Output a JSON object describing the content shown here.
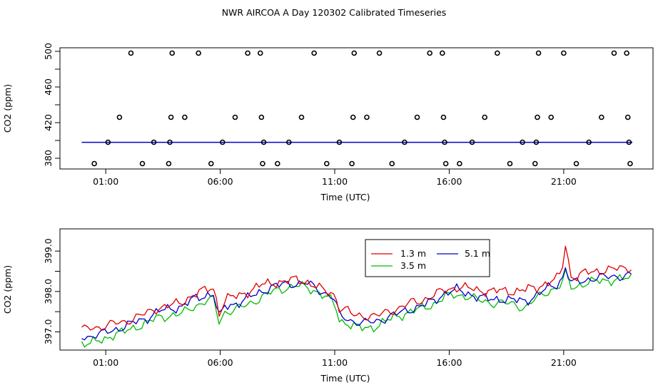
{
  "title": "NWR AIRCOA A  Day 120302  Calibrated Timeseries",
  "chart_data": [
    {
      "type": "scatter",
      "xlabel": "Time (UTC)",
      "ylabel": "CO2 (ppm)",
      "xlim": [
        -1.0,
        24.9
      ],
      "ylim": [
        368,
        504
      ],
      "x_ticks": [
        1,
        6,
        11,
        16,
        21
      ],
      "x_tick_labels": [
        "01:00",
        "06:00",
        "11:00",
        "16:00",
        "21:00"
      ],
      "y_ticks": [
        380,
        400,
        420,
        440,
        460,
        480,
        500
      ],
      "y_tick_labels": [
        "380",
        "",
        "420",
        "",
        "460",
        "",
        "500"
      ],
      "line_color": "#0000cc",
      "line_y": 397.9,
      "line_x_range": [
        -0.05,
        24.0
      ],
      "points": [
        {
          "x": 1.1,
          "y": 398
        },
        {
          "x": 0.5,
          "y": 374
        },
        {
          "x": 1.6,
          "y": 426
        },
        {
          "x": 2.1,
          "y": 498
        },
        {
          "x": 2.6,
          "y": 374
        },
        {
          "x": 3.1,
          "y": 398
        },
        {
          "x": 3.75,
          "y": 374
        },
        {
          "x": 3.8,
          "y": 398
        },
        {
          "x": 3.85,
          "y": 426
        },
        {
          "x": 3.9,
          "y": 498
        },
        {
          "x": 4.45,
          "y": 426
        },
        {
          "x": 5.05,
          "y": 498
        },
        {
          "x": 5.6,
          "y": 374
        },
        {
          "x": 6.1,
          "y": 398
        },
        {
          "x": 6.65,
          "y": 426
        },
        {
          "x": 7.2,
          "y": 498
        },
        {
          "x": 7.75,
          "y": 498
        },
        {
          "x": 7.8,
          "y": 426
        },
        {
          "x": 7.85,
          "y": 374
        },
        {
          "x": 7.9,
          "y": 398
        },
        {
          "x": 8.5,
          "y": 374
        },
        {
          "x": 9.0,
          "y": 398
        },
        {
          "x": 9.55,
          "y": 426
        },
        {
          "x": 10.1,
          "y": 498
        },
        {
          "x": 10.65,
          "y": 374
        },
        {
          "x": 11.2,
          "y": 398
        },
        {
          "x": 11.75,
          "y": 374
        },
        {
          "x": 11.8,
          "y": 426
        },
        {
          "x": 11.85,
          "y": 498
        },
        {
          "x": 12.4,
          "y": 426
        },
        {
          "x": 12.95,
          "y": 498
        },
        {
          "x": 13.5,
          "y": 374
        },
        {
          "x": 14.05,
          "y": 398
        },
        {
          "x": 14.6,
          "y": 426
        },
        {
          "x": 15.15,
          "y": 498
        },
        {
          "x": 15.7,
          "y": 498
        },
        {
          "x": 15.75,
          "y": 426
        },
        {
          "x": 15.8,
          "y": 398
        },
        {
          "x": 15.85,
          "y": 374
        },
        {
          "x": 16.45,
          "y": 374
        },
        {
          "x": 17.0,
          "y": 398
        },
        {
          "x": 17.55,
          "y": 426
        },
        {
          "x": 18.1,
          "y": 498
        },
        {
          "x": 18.65,
          "y": 374
        },
        {
          "x": 19.2,
          "y": 398
        },
        {
          "x": 19.75,
          "y": 374
        },
        {
          "x": 19.8,
          "y": 398
        },
        {
          "x": 19.85,
          "y": 426
        },
        {
          "x": 19.9,
          "y": 498
        },
        {
          "x": 20.45,
          "y": 426
        },
        {
          "x": 21.0,
          "y": 498
        },
        {
          "x": 21.55,
          "y": 374
        },
        {
          "x": 22.1,
          "y": 398
        },
        {
          "x": 22.65,
          "y": 426
        },
        {
          "x": 23.2,
          "y": 498
        },
        {
          "x": 23.75,
          "y": 498
        },
        {
          "x": 23.8,
          "y": 426
        },
        {
          "x": 23.85,
          "y": 398
        },
        {
          "x": 23.9,
          "y": 374
        }
      ]
    },
    {
      "type": "line",
      "xlabel": "Time (UTC)",
      "ylabel": "CO2 (ppm)",
      "xlim": [
        -1.0,
        24.9
      ],
      "ylim": [
        396.55,
        399.55
      ],
      "x_ticks": [
        1,
        6,
        11,
        16,
        21
      ],
      "x_tick_labels": [
        "01:00",
        "06:00",
        "11:00",
        "16:00",
        "21:00"
      ],
      "y_ticks": [
        397.0,
        397.5,
        398.0,
        398.5,
        399.0
      ],
      "y_tick_labels": [
        "397.0",
        "",
        "398.0",
        "",
        "399.0"
      ],
      "x_start": -0.05,
      "x_step": 0.125,
      "series": [
        {
          "name": "1.3 m",
          "color": "#dd0000",
          "anchors": [
            [
              -0.05,
              397.04
            ],
            [
              0.3,
              397.1
            ],
            [
              0.8,
              397.12
            ],
            [
              1.3,
              397.2
            ],
            [
              1.8,
              397.24
            ],
            [
              2.3,
              397.36
            ],
            [
              2.8,
              397.46
            ],
            [
              3.3,
              397.6
            ],
            [
              3.8,
              397.65
            ],
            [
              4.3,
              397.72
            ],
            [
              4.8,
              397.92
            ],
            [
              5.3,
              398.02
            ],
            [
              5.7,
              398.1
            ],
            [
              6.0,
              397.74
            ],
            [
              6.3,
              397.82
            ],
            [
              6.8,
              397.9
            ],
            [
              7.3,
              398.02
            ],
            [
              7.8,
              398.16
            ],
            [
              8.3,
              398.22
            ],
            [
              8.8,
              398.24
            ],
            [
              9.3,
              398.3
            ],
            [
              9.8,
              398.24
            ],
            [
              10.3,
              398.08
            ],
            [
              10.8,
              397.96
            ],
            [
              11.3,
              397.62
            ],
            [
              11.8,
              397.42
            ],
            [
              12.3,
              397.4
            ],
            [
              12.8,
              397.38
            ],
            [
              13.3,
              397.5
            ],
            [
              13.8,
              397.58
            ],
            [
              14.3,
              397.72
            ],
            [
              14.8,
              397.78
            ],
            [
              15.3,
              397.9
            ],
            [
              15.8,
              398.04
            ],
            [
              16.3,
              398.1
            ],
            [
              16.8,
              398.08
            ],
            [
              17.3,
              398.04
            ],
            [
              17.8,
              398.0
            ],
            [
              18.3,
              398.02
            ],
            [
              18.8,
              398.0
            ],
            [
              19.3,
              398.04
            ],
            [
              19.8,
              398.1
            ],
            [
              20.3,
              398.22
            ],
            [
              20.7,
              398.3
            ],
            [
              20.9,
              398.5
            ],
            [
              21.1,
              398.38
            ],
            [
              21.4,
              398.35
            ],
            [
              21.9,
              398.45
            ],
            [
              22.4,
              398.5
            ],
            [
              22.9,
              398.54
            ],
            [
              23.4,
              398.56
            ],
            [
              23.9,
              398.6
            ]
          ],
          "events": [
            [
              5.95,
              -0.32,
              0.1
            ],
            [
              11.0,
              0.1,
              0.1
            ],
            [
              11.2,
              -0.1,
              0.1
            ],
            [
              21.1,
              0.85,
              0.08
            ]
          ]
        },
        {
          "name": "3.5 m",
          "color": "#00bb00",
          "anchors": [
            [
              -0.05,
              396.72
            ],
            [
              0.3,
              396.7
            ],
            [
              0.8,
              396.8
            ],
            [
              1.3,
              396.92
            ],
            [
              1.8,
              397.0
            ],
            [
              2.3,
              397.12
            ],
            [
              2.8,
              397.22
            ],
            [
              3.3,
              397.36
            ],
            [
              3.8,
              397.4
            ],
            [
              4.3,
              397.44
            ],
            [
              4.8,
              397.62
            ],
            [
              5.3,
              397.74
            ],
            [
              5.7,
              397.8
            ],
            [
              6.0,
              397.5
            ],
            [
              6.3,
              397.5
            ],
            [
              6.8,
              397.58
            ],
            [
              7.3,
              397.7
            ],
            [
              7.8,
              397.86
            ],
            [
              8.3,
              398.0
            ],
            [
              8.8,
              398.08
            ],
            [
              9.3,
              398.14
            ],
            [
              9.8,
              398.1
            ],
            [
              10.3,
              397.98
            ],
            [
              10.8,
              397.78
            ],
            [
              11.3,
              397.3
            ],
            [
              11.8,
              397.14
            ],
            [
              12.3,
              397.08
            ],
            [
              12.8,
              397.14
            ],
            [
              13.3,
              397.28
            ],
            [
              13.8,
              397.4
            ],
            [
              14.3,
              397.5
            ],
            [
              14.8,
              397.58
            ],
            [
              15.3,
              397.68
            ],
            [
              15.8,
              397.86
            ],
            [
              16.3,
              397.92
            ],
            [
              16.8,
              397.88
            ],
            [
              17.3,
              397.78
            ],
            [
              17.8,
              397.72
            ],
            [
              18.3,
              397.72
            ],
            [
              18.8,
              397.68
            ],
            [
              19.3,
              397.6
            ],
            [
              19.8,
              397.82
            ],
            [
              20.3,
              398.0
            ],
            [
              20.7,
              398.1
            ],
            [
              20.9,
              398.18
            ],
            [
              21.1,
              398.15
            ],
            [
              21.4,
              398.1
            ],
            [
              21.9,
              398.2
            ],
            [
              22.4,
              398.25
            ],
            [
              22.9,
              398.28
            ],
            [
              23.4,
              398.3
            ],
            [
              23.9,
              398.32
            ]
          ],
          "events": [
            [
              5.95,
              -0.3,
              0.1
            ],
            [
              11.0,
              0.1,
              0.1
            ],
            [
              11.2,
              -0.1,
              0.1
            ],
            [
              21.1,
              0.3,
              0.08
            ]
          ]
        },
        {
          "name": "5.1 m",
          "color": "#0000cc",
          "anchors": [
            [
              -0.05,
              396.9
            ],
            [
              0.3,
              396.88
            ],
            [
              0.8,
              396.95
            ],
            [
              1.3,
              397.05
            ],
            [
              1.8,
              397.12
            ],
            [
              2.3,
              397.25
            ],
            [
              2.8,
              397.34
            ],
            [
              3.3,
              397.5
            ],
            [
              3.8,
              397.58
            ],
            [
              4.3,
              397.62
            ],
            [
              4.8,
              397.8
            ],
            [
              5.3,
              397.9
            ],
            [
              5.7,
              397.95
            ],
            [
              6.0,
              397.62
            ],
            [
              6.3,
              397.65
            ],
            [
              6.8,
              397.72
            ],
            [
              7.3,
              397.86
            ],
            [
              7.8,
              398.0
            ],
            [
              8.3,
              398.12
            ],
            [
              8.8,
              398.18
            ],
            [
              9.3,
              398.2
            ],
            [
              9.8,
              398.2
            ],
            [
              10.3,
              398.04
            ],
            [
              10.8,
              397.9
            ],
            [
              11.3,
              397.4
            ],
            [
              11.8,
              397.26
            ],
            [
              12.3,
              397.22
            ],
            [
              12.8,
              397.26
            ],
            [
              13.3,
              397.36
            ],
            [
              13.8,
              397.46
            ],
            [
              14.3,
              397.56
            ],
            [
              14.8,
              397.64
            ],
            [
              15.3,
              397.76
            ],
            [
              15.8,
              397.96
            ],
            [
              16.3,
              398.04
            ],
            [
              16.8,
              397.96
            ],
            [
              17.3,
              397.86
            ],
            [
              17.8,
              397.8
            ],
            [
              18.3,
              397.82
            ],
            [
              18.8,
              397.78
            ],
            [
              19.3,
              397.76
            ],
            [
              19.8,
              397.9
            ],
            [
              20.3,
              398.08
            ],
            [
              20.7,
              398.18
            ],
            [
              20.9,
              398.3
            ],
            [
              21.1,
              398.25
            ],
            [
              21.4,
              398.2
            ],
            [
              21.9,
              398.28
            ],
            [
              22.4,
              398.34
            ],
            [
              22.9,
              398.36
            ],
            [
              23.4,
              398.38
            ],
            [
              23.9,
              398.4
            ]
          ],
          "events": [
            [
              5.95,
              -0.32,
              0.1
            ],
            [
              11.0,
              0.1,
              0.1
            ],
            [
              11.2,
              -0.1,
              0.1
            ],
            [
              21.1,
              0.35,
              0.08
            ]
          ]
        }
      ],
      "legend": {
        "entries": [
          "1.3 m",
          "5.1 m",
          "3.5 m"
        ],
        "position": "top-center"
      }
    }
  ]
}
